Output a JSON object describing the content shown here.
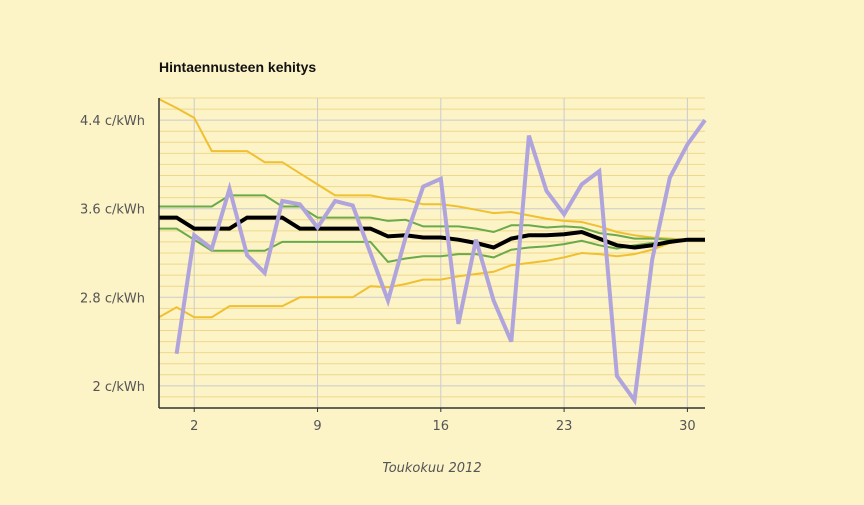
{
  "chart_data": {
    "type": "line",
    "title": "Hintaennusteen kehitys",
    "xlabel": "Toukokuu 2012",
    "ylabel": "",
    "x": [
      1,
      2,
      3,
      4,
      5,
      6,
      7,
      8,
      9,
      10,
      11,
      12,
      13,
      14,
      15,
      16,
      17,
      18,
      19,
      20,
      21,
      22,
      23,
      24,
      25,
      26,
      27,
      28,
      29,
      30,
      31
    ],
    "xlim": [
      0,
      31
    ],
    "ylim": [
      1.8,
      4.6
    ],
    "x_ticks": [
      2,
      9,
      16,
      23,
      30
    ],
    "x_tick_labels": [
      "2",
      "9",
      "16",
      "23",
      "30"
    ],
    "y_ticks": [
      2.0,
      2.8,
      3.6,
      4.4
    ],
    "y_tick_labels": [
      "2 c/kWh",
      "2.8 c/kWh",
      "3.6 c/kWh",
      "4.4 c/kWh"
    ],
    "grid": true,
    "colors": {
      "background": "#fcf3c7",
      "major_grid": "#cccccc",
      "minor_grid": "#f0d88a",
      "axis": "#333333",
      "forecast": "#000000",
      "inner_band": "#6aaa4a",
      "outer_band": "#f0c030",
      "actual": "#b0a4dc"
    },
    "series": [
      {
        "role": "outer_upper",
        "color": "#f0c030",
        "width": 2,
        "points": [
          [
            0,
            4.59
          ],
          [
            1,
            4.51
          ],
          [
            2,
            4.42
          ],
          [
            3,
            4.12
          ],
          [
            4,
            4.12
          ],
          [
            5,
            4.12
          ],
          [
            6,
            4.02
          ],
          [
            7,
            4.02
          ],
          [
            8,
            3.92
          ],
          [
            9,
            3.82
          ],
          [
            10,
            3.72
          ],
          [
            11,
            3.72
          ],
          [
            12,
            3.72
          ],
          [
            13,
            3.69
          ],
          [
            14,
            3.68
          ],
          [
            15,
            3.64
          ],
          [
            16,
            3.64
          ],
          [
            17,
            3.62
          ],
          [
            18,
            3.59
          ],
          [
            19,
            3.56
          ],
          [
            20,
            3.57
          ],
          [
            21,
            3.54
          ],
          [
            22,
            3.51
          ],
          [
            23,
            3.49
          ],
          [
            24,
            3.48
          ],
          [
            25,
            3.44
          ],
          [
            26,
            3.39
          ],
          [
            27,
            3.36
          ],
          [
            28,
            3.34
          ],
          [
            29,
            3.33
          ],
          [
            30,
            3.32
          ],
          [
            31,
            3.32
          ]
        ]
      },
      {
        "role": "inner_upper",
        "color": "#6aaa4a",
        "width": 2,
        "points": [
          [
            0,
            3.62
          ],
          [
            1,
            3.62
          ],
          [
            2,
            3.62
          ],
          [
            3,
            3.62
          ],
          [
            4,
            3.72
          ],
          [
            5,
            3.72
          ],
          [
            6,
            3.72
          ],
          [
            7,
            3.62
          ],
          [
            8,
            3.62
          ],
          [
            9,
            3.52
          ],
          [
            10,
            3.52
          ],
          [
            11,
            3.52
          ],
          [
            12,
            3.52
          ],
          [
            13,
            3.49
          ],
          [
            14,
            3.5
          ],
          [
            15,
            3.44
          ],
          [
            16,
            3.44
          ],
          [
            17,
            3.44
          ],
          [
            18,
            3.42
          ],
          [
            19,
            3.39
          ],
          [
            20,
            3.45
          ],
          [
            21,
            3.45
          ],
          [
            22,
            3.43
          ],
          [
            23,
            3.44
          ],
          [
            24,
            3.43
          ],
          [
            25,
            3.38
          ],
          [
            26,
            3.36
          ],
          [
            27,
            3.33
          ],
          [
            28,
            3.33
          ],
          [
            29,
            3.32
          ],
          [
            30,
            3.32
          ],
          [
            31,
            3.32
          ]
        ]
      },
      {
        "role": "inner_lower",
        "color": "#6aaa4a",
        "width": 2,
        "points": [
          [
            0,
            3.42
          ],
          [
            1,
            3.42
          ],
          [
            2,
            3.32
          ],
          [
            3,
            3.22
          ],
          [
            4,
            3.22
          ],
          [
            5,
            3.22
          ],
          [
            6,
            3.22
          ],
          [
            7,
            3.3
          ],
          [
            8,
            3.3
          ],
          [
            9,
            3.3
          ],
          [
            10,
            3.3
          ],
          [
            11,
            3.3
          ],
          [
            12,
            3.3
          ],
          [
            13,
            3.12
          ],
          [
            14,
            3.15
          ],
          [
            15,
            3.17
          ],
          [
            16,
            3.17
          ],
          [
            17,
            3.19
          ],
          [
            18,
            3.19
          ],
          [
            19,
            3.16
          ],
          [
            20,
            3.23
          ],
          [
            21,
            3.25
          ],
          [
            22,
            3.26
          ],
          [
            23,
            3.28
          ],
          [
            24,
            3.31
          ],
          [
            25,
            3.27
          ],
          [
            26,
            3.24
          ],
          [
            27,
            3.27
          ],
          [
            28,
            3.29
          ],
          [
            29,
            3.29
          ],
          [
            30,
            3.32
          ],
          [
            31,
            3.32
          ]
        ]
      },
      {
        "role": "outer_lower",
        "color": "#f0c030",
        "width": 2,
        "points": [
          [
            0,
            2.62
          ],
          [
            1,
            2.71
          ],
          [
            2,
            2.62
          ],
          [
            3,
            2.62
          ],
          [
            4,
            2.72
          ],
          [
            5,
            2.72
          ],
          [
            6,
            2.72
          ],
          [
            7,
            2.72
          ],
          [
            8,
            2.8
          ],
          [
            9,
            2.8
          ],
          [
            10,
            2.8
          ],
          [
            11,
            2.8
          ],
          [
            12,
            2.9
          ],
          [
            13,
            2.89
          ],
          [
            14,
            2.92
          ],
          [
            15,
            2.96
          ],
          [
            16,
            2.96
          ],
          [
            17,
            2.99
          ],
          [
            18,
            3.01
          ],
          [
            19,
            3.03
          ],
          [
            20,
            3.09
          ],
          [
            21,
            3.11
          ],
          [
            22,
            3.13
          ],
          [
            23,
            3.16
          ],
          [
            24,
            3.2
          ],
          [
            25,
            3.19
          ],
          [
            26,
            3.17
          ],
          [
            27,
            3.19
          ],
          [
            28,
            3.23
          ],
          [
            29,
            3.29
          ],
          [
            30,
            3.32
          ],
          [
            31,
            3.32
          ]
        ]
      },
      {
        "role": "forecast",
        "color": "#000000",
        "width": 4,
        "points": [
          [
            0,
            3.52
          ],
          [
            1,
            3.52
          ],
          [
            2,
            3.42
          ],
          [
            3,
            3.42
          ],
          [
            4,
            3.42
          ],
          [
            5,
            3.52
          ],
          [
            6,
            3.52
          ],
          [
            7,
            3.52
          ],
          [
            8,
            3.42
          ],
          [
            9,
            3.42
          ],
          [
            10,
            3.42
          ],
          [
            11,
            3.42
          ],
          [
            12,
            3.42
          ],
          [
            13,
            3.35
          ],
          [
            14,
            3.36
          ],
          [
            15,
            3.34
          ],
          [
            16,
            3.34
          ],
          [
            17,
            3.32
          ],
          [
            18,
            3.29
          ],
          [
            19,
            3.25
          ],
          [
            20,
            3.33
          ],
          [
            21,
            3.36
          ],
          [
            22,
            3.36
          ],
          [
            23,
            3.37
          ],
          [
            24,
            3.39
          ],
          [
            25,
            3.33
          ],
          [
            26,
            3.27
          ],
          [
            27,
            3.25
          ],
          [
            28,
            3.27
          ],
          [
            29,
            3.3
          ],
          [
            30,
            3.32
          ],
          [
            31,
            3.32
          ]
        ]
      },
      {
        "role": "actual",
        "color": "#b0a4dc",
        "width": 4,
        "points": [
          [
            1,
            2.29
          ],
          [
            2,
            3.36
          ],
          [
            3,
            3.24
          ],
          [
            4,
            3.78
          ],
          [
            5,
            3.18
          ],
          [
            6,
            3.02
          ],
          [
            7,
            3.67
          ],
          [
            8,
            3.64
          ],
          [
            9,
            3.43
          ],
          [
            10,
            3.67
          ],
          [
            11,
            3.63
          ],
          [
            12,
            3.2
          ],
          [
            13,
            2.77
          ],
          [
            14,
            3.34
          ],
          [
            15,
            3.8
          ],
          [
            16,
            3.87
          ],
          [
            17,
            2.56
          ],
          [
            18,
            3.32
          ],
          [
            19,
            2.77
          ],
          [
            20,
            2.4
          ],
          [
            21,
            4.26
          ],
          [
            22,
            3.76
          ],
          [
            23,
            3.55
          ],
          [
            24,
            3.82
          ],
          [
            25,
            3.94
          ],
          [
            26,
            2.09
          ],
          [
            27,
            1.87
          ],
          [
            28,
            3.14
          ],
          [
            29,
            3.88
          ],
          [
            30,
            4.18
          ],
          [
            31,
            4.4
          ]
        ]
      }
    ]
  }
}
